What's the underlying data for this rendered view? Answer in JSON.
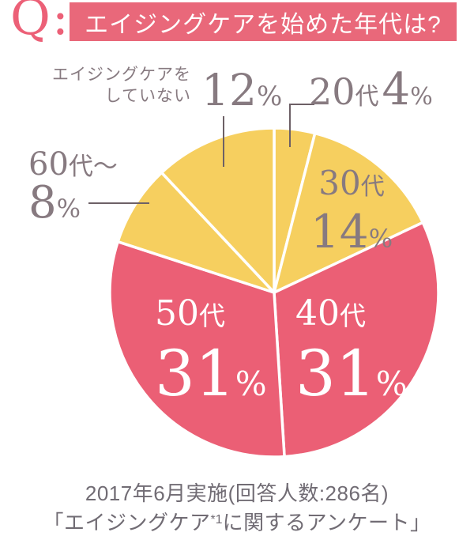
{
  "header": {
    "q_label": "Q:",
    "title": "エイジングケアを始めた年代は?"
  },
  "chart_data": {
    "type": "pie",
    "title": "エイジングケアを始めた年代は?",
    "unit": "%",
    "direction": "clockwise",
    "start_angle_deg": 0,
    "legend": "none",
    "colors": {
      "pink": "#eb5f75",
      "yellow": "#f6cf5f",
      "divider": "#ffffff"
    },
    "slices": [
      {
        "id": "20s",
        "label": "20代",
        "value": 4,
        "color": "#f6cf5f"
      },
      {
        "id": "30s",
        "label": "30代",
        "value": 14,
        "color": "#f6cf5f"
      },
      {
        "id": "40s",
        "label": "40代",
        "value": 31,
        "color": "#eb5f75"
      },
      {
        "id": "50s",
        "label": "50代",
        "value": 31,
        "color": "#eb5f75"
      },
      {
        "id": "60s",
        "label": "60代〜",
        "value": 8,
        "color": "#f6cf5f"
      },
      {
        "id": "none",
        "label": "エイジングケアをしていない",
        "value": 12,
        "color": "#f6cf5f"
      }
    ]
  },
  "callouts": {
    "none": {
      "line1": "エイジングケアを",
      "line2": "していない",
      "num": "12",
      "pct": "%"
    },
    "c20": {
      "age": "20",
      "kanji": "代",
      "num": "4",
      "pct": "%"
    },
    "c60": {
      "age": "60",
      "kanji": "代〜",
      "num": "8",
      "pct": "%"
    },
    "c30": {
      "age": "30",
      "kanji": "代",
      "num": "14",
      "pct": "%"
    },
    "c50": {
      "age": "50",
      "kanji": "代",
      "num": "31",
      "pct": "%"
    },
    "c40": {
      "age": "40",
      "kanji": "代",
      "num": "31",
      "pct": "%"
    }
  },
  "footer": {
    "line1": "2017年6月実施(回答人数:286名)",
    "line2_pre": "「エイジングケア",
    "line2_sup": "*1",
    "line2_post": "に関するアンケート」"
  }
}
